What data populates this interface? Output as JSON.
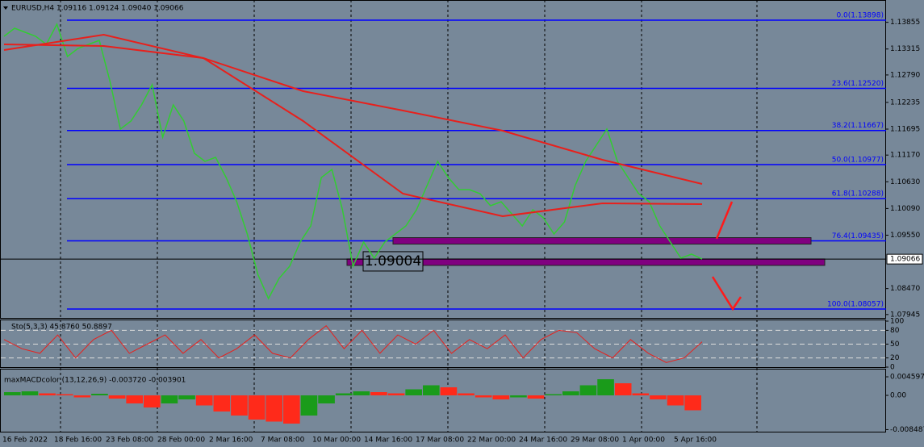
{
  "chart_data": {
    "type": "line",
    "title": "EURUSD,H4 1.09116 1.09124 1.09040 1.09066",
    "series": [
      {
        "name": "EURUSD",
        "color": "#32cd32",
        "values": [
          1.13572,
          1.13735,
          1.13653,
          1.13572,
          1.13409,
          1.13816,
          1.13164,
          1.13327,
          1.13409,
          1.1349,
          1.12674,
          1.11695,
          1.11858,
          1.12185,
          1.12593,
          1.11532,
          1.12185,
          1.11858,
          1.11206,
          1.11043,
          1.11124,
          1.10716,
          1.10227,
          1.09574,
          1.08758,
          1.08269,
          1.08677,
          1.08922,
          1.09411,
          1.09737,
          1.10716,
          1.1088,
          1.10064,
          1.08922,
          1.09411,
          1.09085,
          1.09411,
          1.09574,
          1.09737,
          1.10064,
          1.10553,
          1.11043,
          1.10716,
          1.10472,
          1.10472,
          1.1039,
          1.10145,
          1.10227,
          1.09982,
          1.09737,
          1.10064,
          1.09901,
          1.09574,
          1.09819,
          1.10553,
          1.11043,
          1.11369,
          1.11695,
          1.11043,
          1.10716,
          1.1039,
          1.10227,
          1.09737,
          1.09411,
          1.09085,
          1.09166,
          1.09066
        ]
      },
      {
        "color": "#e8201c",
        "values": [
          1.13409,
          1.13376,
          1.13131,
          1.12462,
          1.12071,
          1.11663,
          1.11075,
          1.10586
        ]
      },
      {
        "color": "#e8201c",
        "values": [
          1.13294,
          1.13604,
          1.13131,
          1.11858,
          1.1039,
          1.09933,
          1.10194,
          1.10178
        ]
      }
    ],
    "ylim": [
      1.07877,
      1.14306
    ],
    "yticks": [
      1.13855,
      1.13315,
      {
        "value": 1.1279,
        "label": "1.12790"
      },
      1.12235,
      1.11695,
      {
        "value": 1.1117,
        "label": "1.11170"
      },
      {
        "value": 1.1063,
        "label": "1.10630"
      },
      {
        "value": 1.1009,
        "label": "1.10090"
      },
      {
        "value": 1.0955,
        "label": "1.09550"
      },
      {
        "value": 1.0847,
        "label": "1.08470"
      },
      1.07945
    ],
    "fibo": [
      {
        "value": 1.13898,
        "label": "0.0(1.13898)"
      },
      {
        "value": 1.1252,
        "label": "23.6(1.12520)"
      },
      {
        "value": 1.11667,
        "label": "38.2(1.11667)"
      },
      {
        "value": 1.10977,
        "label": "50.0(1.10977)"
      },
      {
        "value": 1.10288,
        "label": "61.8(1.10288)"
      },
      {
        "value": 1.09435,
        "label": "76.4(1.09435)"
      },
      {
        "value": 1.08057,
        "label": "100.0(1.08057)"
      }
    ],
    "zones": [
      1.09435,
      1.09004
    ],
    "zone_color": "#800080",
    "price_marker": {
      "value": 1.09004,
      "label": "1.09004"
    },
    "last": {
      "value": 1.09066,
      "label": "1.09066"
    },
    "x_labels": [
      "16 Feb 2022",
      "18 Feb 16:00",
      "23 Feb 08:00",
      "28 Feb 00:00",
      "2 Mar 16:00",
      "7 Mar 08:00",
      "10 Mar 00:00",
      "14 Mar 16:00",
      "17 Mar 08:00",
      "22 Mar 00:00",
      "24 Mar 16:00",
      "29 Mar 08:00",
      "1 Apr 00:00",
      "5 Apr 16:00"
    ],
    "stochastic": {
      "title": "Sto(5,3,3) 45.8760 50.8897",
      "color": "#e8201c",
      "values": [
        60,
        40,
        30,
        70,
        20,
        60,
        80,
        30,
        50,
        70,
        30,
        60,
        20,
        40,
        70,
        30,
        20,
        60,
        90,
        40,
        80,
        30,
        70,
        50,
        80,
        30,
        60,
        40,
        70,
        20,
        60,
        80,
        75,
        40,
        20,
        60,
        30,
        10,
        20,
        55
      ],
      "ylim": [
        0,
        100
      ],
      "yticks": [
        100,
        80,
        50,
        20,
        0
      ],
      "levels": [
        80,
        50,
        20
      ]
    },
    "macd": {
      "title": "maxMACDcolor (13,12,26,9) -0.003720 -0.003901",
      "up_color": "#1a9b1a",
      "down_color": "#ff2a1a",
      "values": [
        0.0008,
        0.001,
        0.0005,
        0.0003,
        -0.0005,
        0.0004,
        -0.0008,
        -0.002,
        -0.003,
        -0.002,
        -0.001,
        -0.0025,
        -0.004,
        -0.005,
        -0.006,
        -0.0065,
        -0.007,
        -0.005,
        -0.002,
        0.0005,
        0.001,
        0.0008,
        0.0005,
        0.0015,
        0.0025,
        0.002,
        0.0005,
        -0.0005,
        -0.001,
        -0.0005,
        -0.0008,
        0.0003,
        0.001,
        0.0025,
        0.004,
        0.003,
        0.0005,
        -0.001,
        -0.0025,
        -0.0037
      ],
      "ylim": [
        -0.009,
        0.0066
      ],
      "yticks": [
        0.004597,
        {
          "value": 0,
          "label": "0.00"
        },
        -0.008487
      ]
    }
  }
}
